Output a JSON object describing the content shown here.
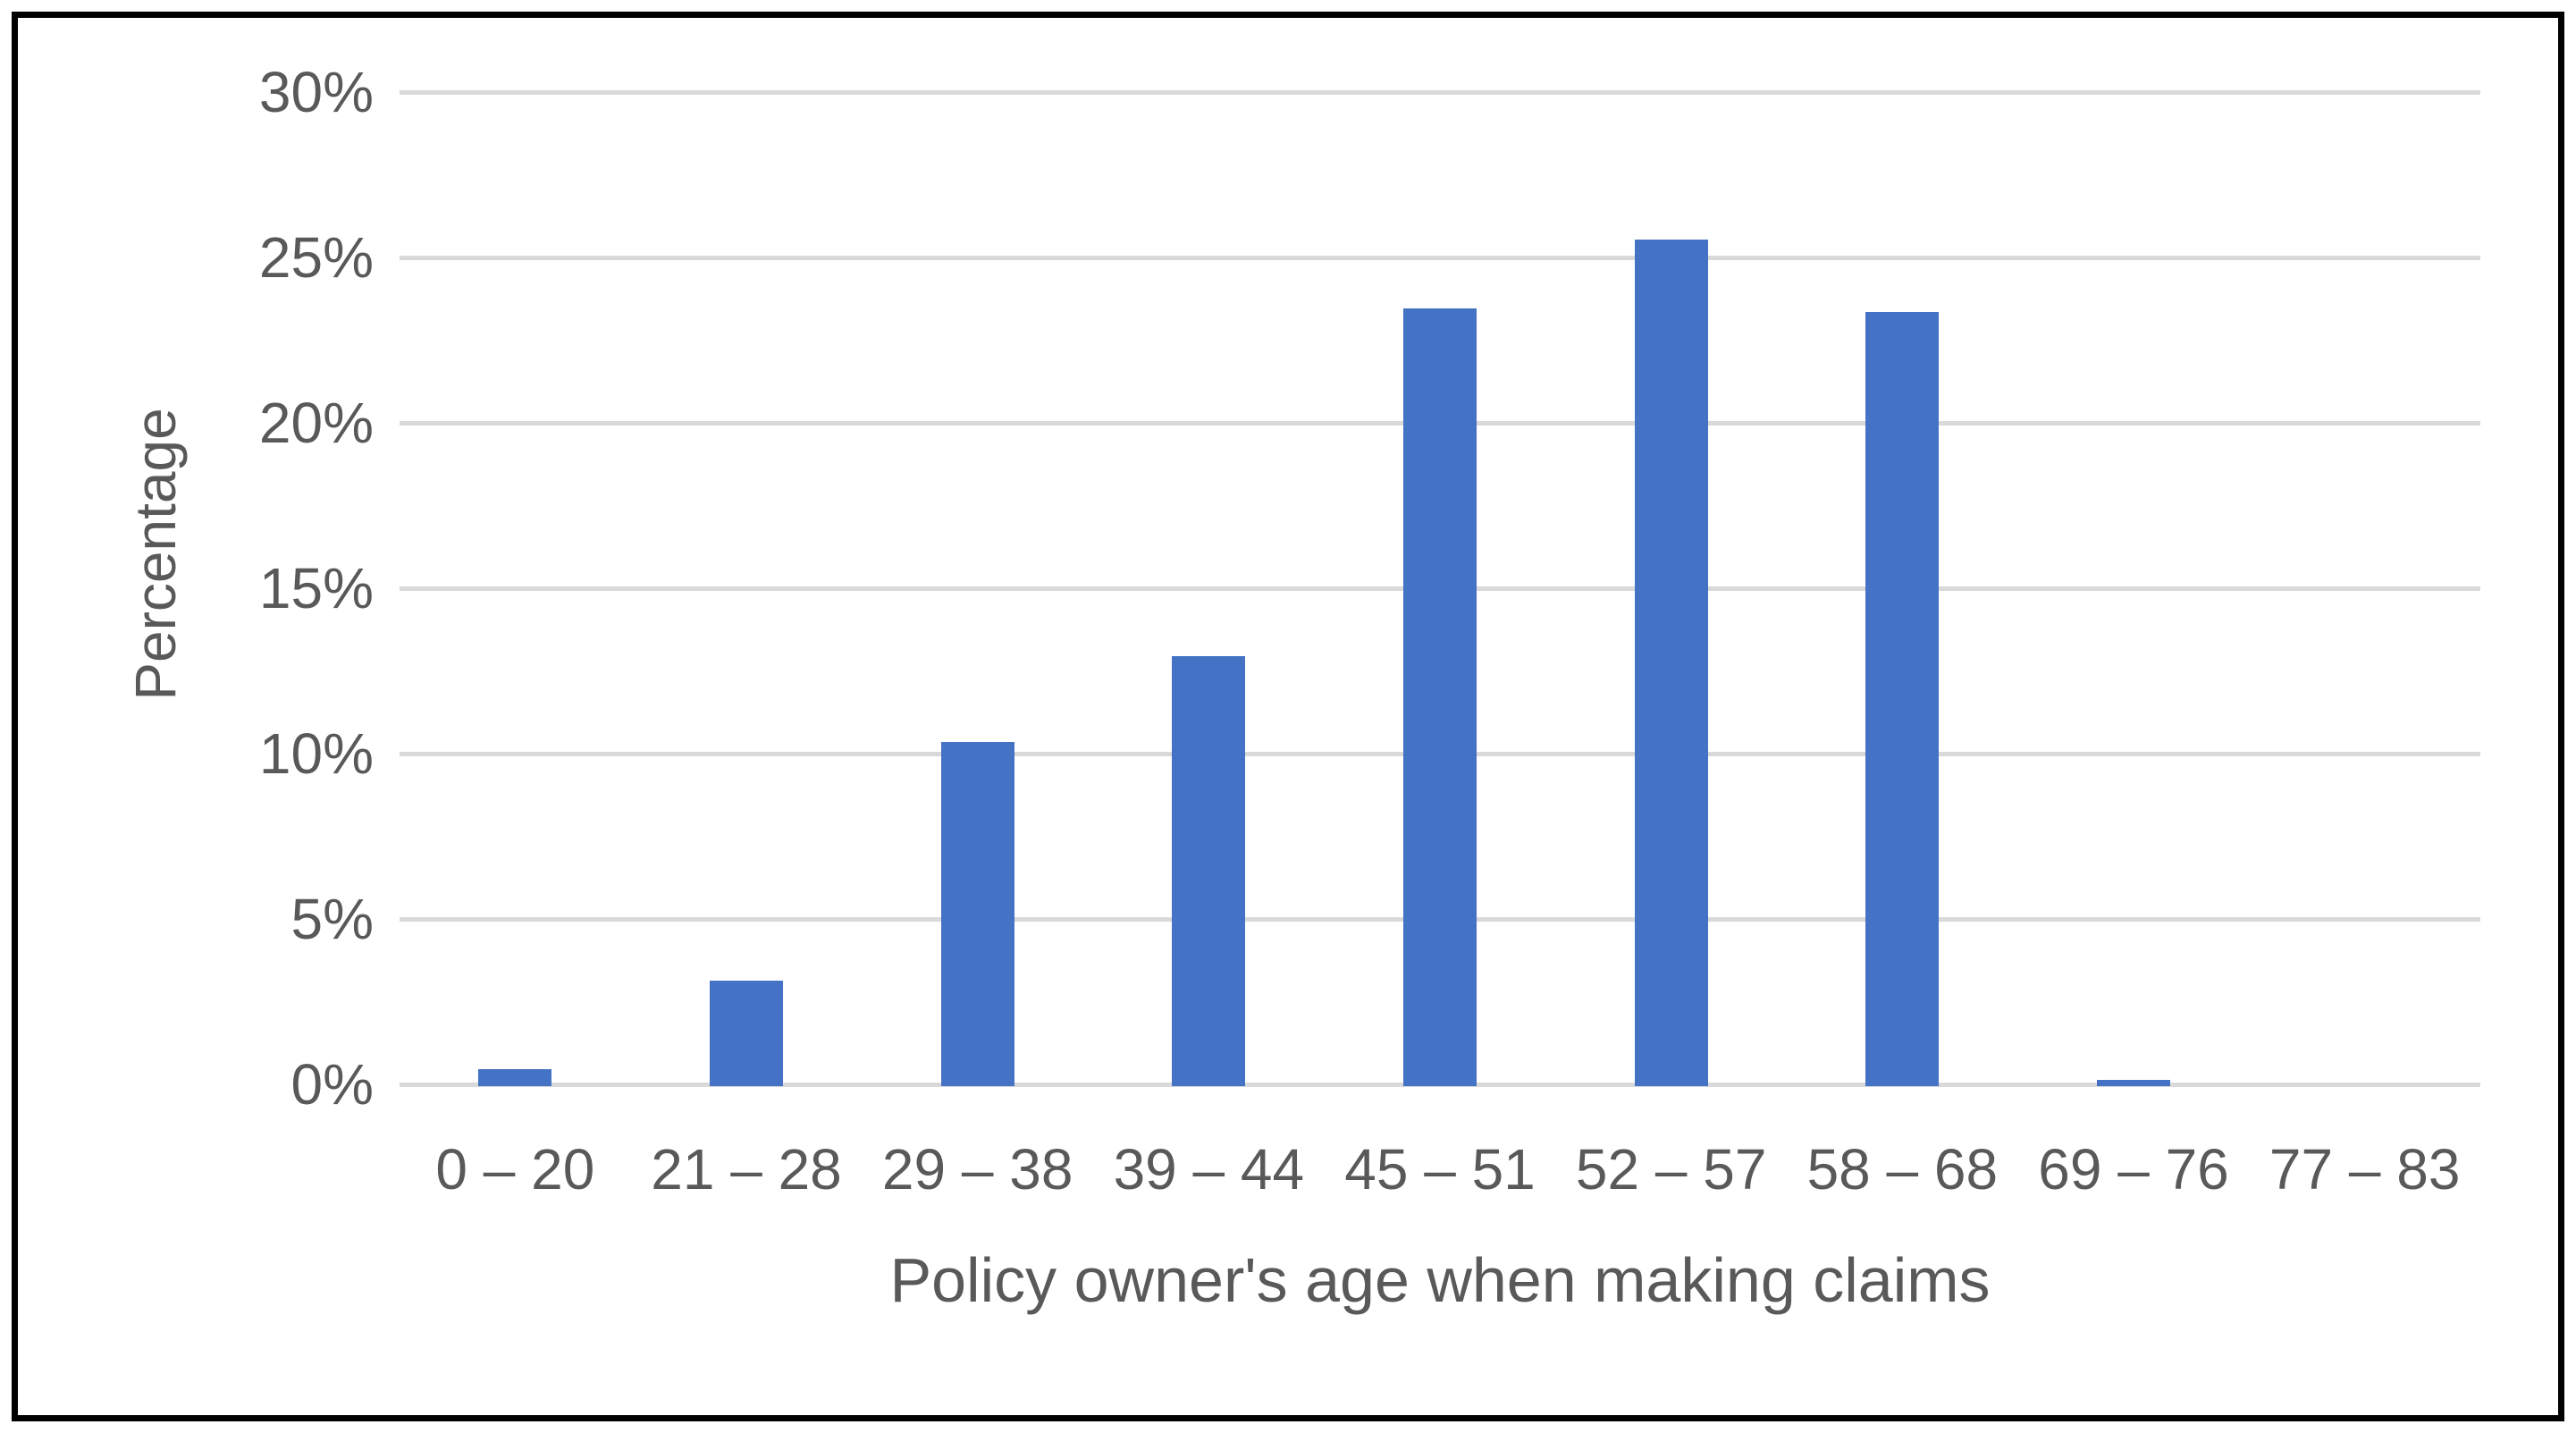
{
  "chart_data": {
    "type": "bar",
    "title": "",
    "xlabel": "Policy owner's age when making claims",
    "ylabel": "Percentage",
    "categories": [
      "0 – 20",
      "21 – 28",
      "29 – 38",
      "39 – 44",
      "45 – 51",
      "52 – 57",
      "58 – 68",
      "69 – 76",
      "77 – 83"
    ],
    "values": [
      0.5,
      3.2,
      10.4,
      13.0,
      23.5,
      25.6,
      23.4,
      0.2,
      0
    ],
    "ylim": [
      0,
      30
    ],
    "ytick_step": 5,
    "ytick_labels": [
      "0%",
      "5%",
      "10%",
      "15%",
      "20%",
      "25%",
      "30%"
    ],
    "grid": true,
    "legend": false,
    "colors": {
      "bar": "#4472C4",
      "gridline": "#D9D9D9",
      "text": "#595959",
      "border": "#000000",
      "background": "#FFFFFF"
    }
  }
}
